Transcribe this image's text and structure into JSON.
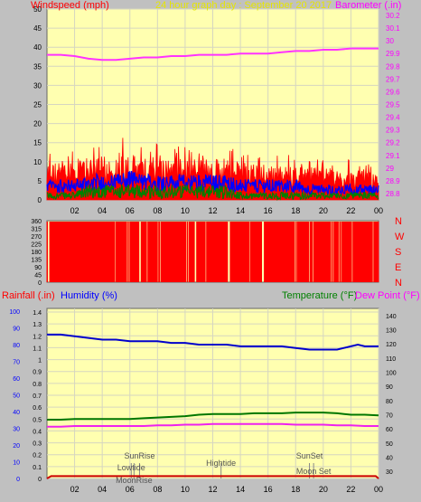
{
  "colors": {
    "background": "#c0c0c0",
    "plot": "#ffffb0",
    "grid": "#d6d6c0",
    "wind": "#ff0000",
    "gust_blue": "#0000ff",
    "avg_green": "#008000",
    "barometer": "#ff33ff",
    "humidity": "#0000cc",
    "temperature": "#007700",
    "dewpoint": "#ee22ee",
    "rain": "#cc0000",
    "label_red": "#ff0000",
    "label_blue": "#0000ff",
    "label_green": "#008000",
    "label_magenta": "#ff00ff",
    "label_yellow": "#e6e600",
    "axis_text": "#000000",
    "right_axis_text": "#ff00ff"
  },
  "header": {
    "wind_label": "Windspeed (mph)",
    "title": "24 hour graph day : September 20 2017",
    "baro_label": "Barometer (.in)"
  },
  "labels3": {
    "rain": "Rainfall (.in)",
    "humidity": "Humidity (%)",
    "temperature": "Temperature (°F)",
    "dewpoint": "Dew Point (°F)"
  },
  "chart_data": [
    {
      "type": "line",
      "panel": "wind_barometer",
      "x_ticks": [
        "02",
        "04",
        "06",
        "08",
        "10",
        "12",
        "14",
        "16",
        "18",
        "20",
        "22",
        "00"
      ],
      "y_left_ticks": [
        "0",
        "5",
        "10",
        "15",
        "20",
        "25",
        "30",
        "35",
        "40",
        "45",
        "50"
      ],
      "y_left_range": [
        0,
        50
      ],
      "y_right_ticks": [
        "28.8",
        "28.9",
        "29",
        "29.1",
        "29.2",
        "29.3",
        "29.4",
        "29.5",
        "29.6",
        "29.7",
        "29.8",
        "29.9",
        "30",
        "30.1",
        "30.2"
      ],
      "y_right_range": [
        28.75,
        30.25
      ],
      "series": [
        {
          "name": "Windspeed (mph)",
          "hours": [
            0,
            1,
            2,
            3,
            4,
            5,
            6,
            7,
            8,
            9,
            10,
            11,
            12,
            13,
            14,
            15,
            16,
            17,
            18,
            19,
            20,
            21,
            22,
            23,
            24
          ],
          "gust_peak": [
            16,
            14,
            13,
            13,
            15,
            14,
            22,
            16,
            15,
            14,
            15,
            14,
            15,
            14,
            13,
            14,
            12,
            13,
            13,
            12,
            11,
            11,
            11,
            10,
            9
          ],
          "gust_typical": [
            9,
            9,
            9,
            10,
            10,
            10,
            11,
            10,
            10,
            10,
            10,
            10,
            10,
            10,
            9,
            9,
            9,
            8,
            8,
            8,
            8,
            7,
            7,
            7,
            6
          ],
          "average": [
            4,
            4,
            4,
            5,
            5,
            5,
            6,
            5,
            5,
            5,
            5,
            5,
            5,
            5,
            4,
            4,
            4,
            4,
            4,
            3,
            3,
            3,
            3,
            3,
            3
          ],
          "low": [
            1,
            1,
            1,
            2,
            2,
            2,
            2,
            2,
            2,
            2,
            2,
            2,
            2,
            2,
            1,
            1,
            1,
            1,
            1,
            1,
            1,
            1,
            1,
            1,
            1
          ]
        },
        {
          "name": "Barometer (.in)",
          "hours": [
            0,
            1,
            2,
            3,
            4,
            5,
            6,
            7,
            8,
            9,
            10,
            11,
            12,
            13,
            14,
            15,
            16,
            17,
            18,
            19,
            20,
            21,
            22,
            23,
            24
          ],
          "values": [
            29.89,
            29.89,
            29.88,
            29.86,
            29.85,
            29.85,
            29.86,
            29.87,
            29.87,
            29.88,
            29.88,
            29.89,
            29.89,
            29.89,
            29.9,
            29.9,
            29.9,
            29.91,
            29.92,
            29.92,
            29.93,
            29.93,
            29.94,
            29.94,
            29.94
          ]
        }
      ]
    },
    {
      "type": "bar",
      "panel": "wind_direction",
      "y_left_ticks": [
        "0",
        "45",
        "90",
        "135",
        "180",
        "225",
        "270",
        "315",
        "360"
      ],
      "y_right_ticks": [
        "N",
        "W",
        "S",
        "E",
        "N"
      ],
      "y_range": [
        0,
        360
      ],
      "series": [
        {
          "name": "Wind direction",
          "gaps_hours": [
            0.1,
            0.15,
            4.95,
            5.8,
            5.95,
            6.7,
            6.78,
            7.25,
            8.05,
            8.2,
            10.1,
            10.25,
            10.7,
            10.78,
            11.5,
            13.1,
            13.2,
            14.7,
            15.6,
            15.7,
            17.95,
            18.05,
            19.0,
            19.25,
            20.6,
            20.72,
            21.15,
            21.3,
            22.1,
            23.6
          ]
        }
      ]
    },
    {
      "type": "line",
      "panel": "rain_humidity_temp",
      "x_ticks": [
        "02",
        "04",
        "06",
        "08",
        "10",
        "12",
        "14",
        "16",
        "18",
        "20",
        "22",
        "00"
      ],
      "y_rain_ticks": [
        "0",
        "0.1",
        "0.2",
        "0.3",
        "0.4",
        "0.5",
        "0.6",
        "0.7",
        "0.8",
        "0.9",
        "1",
        "1.1",
        "1.2",
        "1.3",
        "1.4"
      ],
      "y_rain_range": [
        0,
        1.4
      ],
      "y_humidity_ticks": [
        "0",
        "10",
        "20",
        "30",
        "40",
        "50",
        "60",
        "70",
        "80",
        "90",
        "100"
      ],
      "y_humidity_range": [
        0,
        100
      ],
      "y_temp_ticks": [
        "30",
        "40",
        "50",
        "60",
        "70",
        "80",
        "90",
        "100",
        "110",
        "120",
        "130",
        "140"
      ],
      "y_temp_range": [
        25,
        145
      ],
      "series": [
        {
          "name": "Humidity (%)",
          "hours": [
            0,
            1,
            2,
            3,
            4,
            5,
            6,
            7,
            8,
            9,
            10,
            11,
            12,
            13,
            14,
            15,
            16,
            17,
            18,
            19,
            20,
            21,
            22,
            22.5,
            23,
            24
          ],
          "values": [
            86,
            86,
            85,
            84,
            83,
            83,
            82,
            82,
            82,
            81,
            81,
            80,
            80,
            80,
            79,
            79,
            79,
            79,
            78,
            77,
            77,
            77,
            79,
            80,
            79,
            79
          ]
        },
        {
          "name": "Temperature (°F)",
          "hours": [
            0,
            1,
            2,
            3,
            4,
            5,
            6,
            7,
            8,
            9,
            10,
            11,
            12,
            13,
            14,
            15,
            16,
            17,
            18,
            19,
            20,
            21,
            22,
            23,
            24
          ],
          "values": [
            66.5,
            66.5,
            67,
            67,
            67,
            67,
            67,
            67.5,
            68,
            68.5,
            69,
            70,
            70.5,
            70.5,
            70.5,
            71,
            71,
            71,
            71.5,
            71.5,
            71.5,
            71,
            70,
            70,
            69.5
          ]
        },
        {
          "name": "Dew Point (°F)",
          "hours": [
            0,
            1,
            2,
            3,
            4,
            5,
            6,
            7,
            8,
            9,
            10,
            11,
            12,
            13,
            14,
            15,
            16,
            17,
            18,
            19,
            20,
            21,
            22,
            23,
            24
          ],
          "values": [
            61.5,
            61.5,
            62,
            62,
            62,
            62,
            62,
            62,
            62.5,
            62.5,
            63,
            63,
            63.5,
            63.5,
            63.5,
            63.5,
            63.5,
            63.5,
            63,
            63,
            63,
            62.5,
            62.5,
            62,
            62
          ]
        },
        {
          "name": "Rainfall (.in)",
          "hours": [
            0,
            0.3,
            23.8,
            24
          ],
          "values": [
            0,
            0.02,
            0.02,
            0
          ]
        }
      ],
      "annotations": [
        {
          "text": "SunRise",
          "hour": 6.7
        },
        {
          "text": "Lowtide",
          "hour": 6.1
        },
        {
          "text": "MoonRise",
          "hour": 6.3
        },
        {
          "text": "Hightide",
          "hour": 12.6
        },
        {
          "text": "SunSet",
          "hour": 19.0
        },
        {
          "text": "Moon Set",
          "hour": 19.3
        }
      ]
    }
  ]
}
